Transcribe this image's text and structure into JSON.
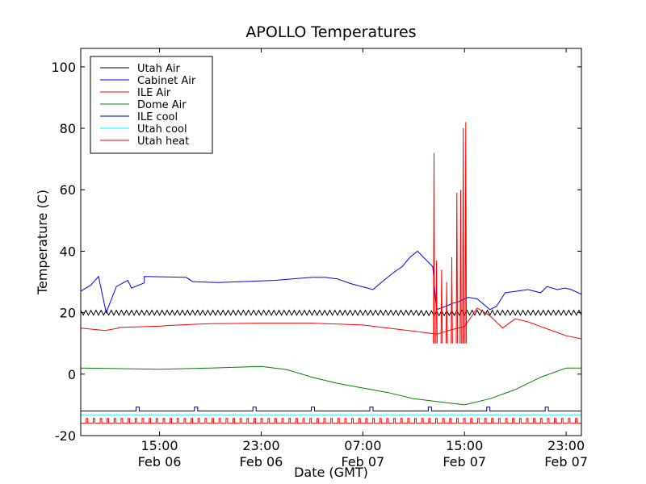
{
  "chart_data": {
    "type": "line",
    "title": "APOLLO Temperatures",
    "xlabel": "Date (GMT)",
    "ylabel": "Temperature (C)",
    "x_unit": "hours since Feb 06 15:00 GMT",
    "xlim": [
      -6.2,
      33.2
    ],
    "ylim": [
      -20,
      106
    ],
    "grid": false,
    "legend_position": "top-left",
    "y_ticks": [
      {
        "value": -20,
        "label": "-20"
      },
      {
        "value": 0,
        "label": "0"
      },
      {
        "value": 20,
        "label": "20"
      },
      {
        "value": 40,
        "label": "40"
      },
      {
        "value": 60,
        "label": "60"
      },
      {
        "value": 80,
        "label": "80"
      },
      {
        "value": 100,
        "label": "100"
      }
    ],
    "x_ticks": [
      {
        "value": 0,
        "time": "15:00",
        "date": "Feb 06"
      },
      {
        "value": 8,
        "time": "23:00",
        "date": "Feb 06"
      },
      {
        "value": 16,
        "time": "07:00",
        "date": "Feb 07"
      },
      {
        "value": 24,
        "time": "15:00",
        "date": "Feb 07"
      },
      {
        "value": 32,
        "time": "23:00",
        "date": "Feb 07"
      }
    ],
    "series": [
      {
        "name": "Utah Air",
        "color": "#000000",
        "x": [
          -6.2,
          0,
          4,
          8,
          12,
          16,
          20,
          21.5,
          24,
          28,
          32,
          33.2
        ],
        "y": [
          20,
          20,
          20,
          20,
          20,
          20,
          20,
          19.8,
          20,
          20,
          20,
          20
        ],
        "oscillation": 0.8
      },
      {
        "name": "Cabinet Air",
        "color": "#0000ff",
        "x": [
          -6.2,
          -5.4,
          -4.8,
          -4.2,
          -3.4,
          -2.5,
          -2.2,
          -1.2,
          -1.2,
          2.1,
          2.6,
          4.6,
          9,
          12,
          13,
          14,
          15,
          16.8,
          17.5,
          18.4,
          19.1,
          19.7,
          20.3,
          21.5,
          21.8,
          22.8,
          23,
          23.5,
          24,
          24.3,
          25,
          26,
          26.5,
          27.2,
          28.1,
          29,
          30,
          30.5,
          31.3,
          31.9,
          32.4,
          33.2
        ],
        "y": [
          27,
          29,
          31.8,
          20,
          28.5,
          30.5,
          28,
          29.7,
          31.8,
          31.5,
          30.1,
          29.8,
          30.5,
          31.5,
          31.5,
          31,
          29.5,
          27.5,
          30,
          33,
          35,
          38,
          40,
          35,
          21,
          22.5,
          23,
          23.5,
          24.5,
          25,
          24.5,
          21,
          22,
          26.5,
          27,
          27.5,
          26.5,
          28.5,
          27.5,
          28,
          27.5,
          26
        ],
        "spikes_below": 3
      },
      {
        "name": "ILE Air",
        "color": "#ff0000",
        "x": [
          -6.2,
          -4.3,
          -3.2,
          -3.2,
          0,
          0.6,
          1.6,
          2.6,
          4,
          8,
          12,
          16,
          18,
          20,
          21.8,
          23,
          24,
          25,
          26,
          27,
          28,
          29,
          30,
          31,
          32,
          33.2
        ],
        "y": [
          15,
          14.2,
          15,
          15.2,
          15.6,
          15.8,
          16,
          16.2,
          16.4,
          16.6,
          16.6,
          16,
          15,
          14,
          13,
          14.5,
          15.5,
          21.5,
          19,
          15,
          18,
          17,
          15.5,
          14,
          12.5,
          11.5
        ]
      },
      {
        "name": "Dome Air",
        "color": "#008000",
        "x": [
          -6.2,
          0,
          4,
          8,
          10,
          12,
          14,
          16,
          18,
          20,
          22,
          24,
          26,
          28,
          30,
          32,
          33.2
        ],
        "y": [
          2,
          1.6,
          2,
          2.5,
          1.5,
          -1,
          -3,
          -4.5,
          -6,
          -8,
          -9,
          -10,
          -8,
          -5,
          -1,
          2,
          2
        ]
      },
      {
        "name": "ILE cool",
        "color": "#000080",
        "x": [
          -6.2,
          33.2
        ],
        "y": [
          -12,
          -12
        ],
        "pulse_height": 1.3
      },
      {
        "name": "Utah cool",
        "color": "#00ffff",
        "x": [
          -6.2,
          33.2
        ],
        "y": [
          -13.2,
          -13.2
        ]
      },
      {
        "name": "Utah heat",
        "color": "#ff0000",
        "x": [
          -6.2,
          33.2
        ],
        "y": [
          -16,
          -16
        ],
        "pulse_height": 1.6
      }
    ],
    "heater_spikes": {
      "name": "Utah heat",
      "color": "#ff0000",
      "x": [
        21.6,
        21.8,
        22.2,
        22.6,
        23,
        23.4,
        23.7,
        23.9,
        24.1
      ],
      "y": [
        72,
        37,
        34,
        30,
        38,
        59,
        60,
        80,
        82
      ],
      "base": 10
    }
  }
}
